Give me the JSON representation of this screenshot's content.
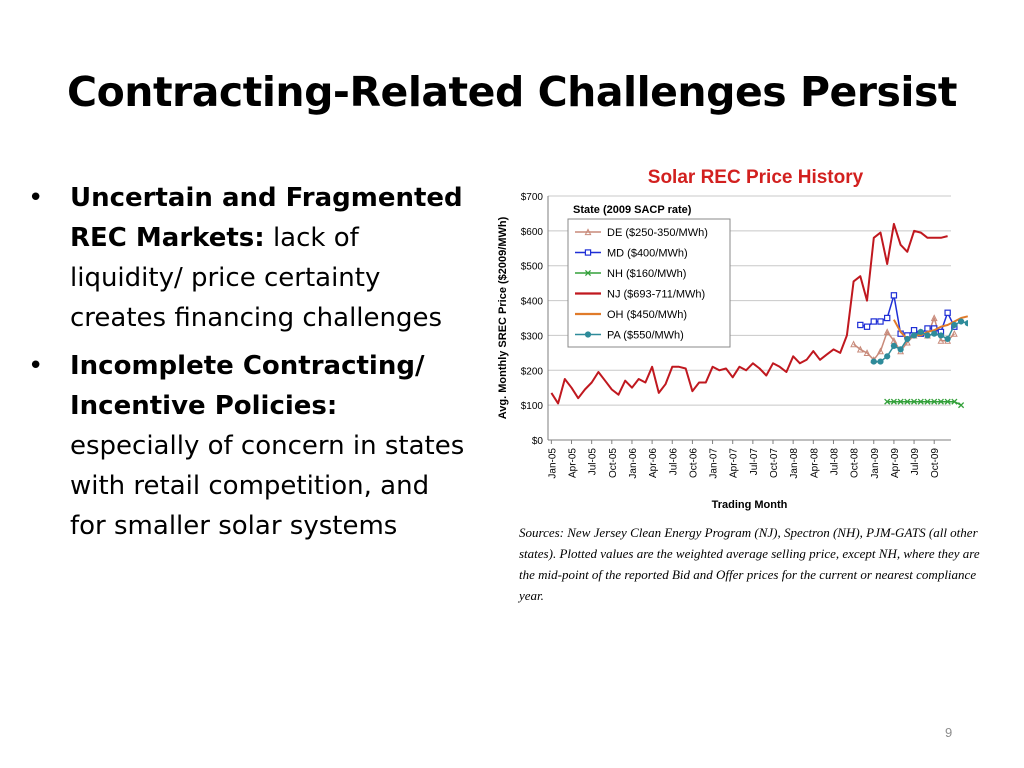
{
  "slide": {
    "title": "Contracting-Related Challenges Persist",
    "bullets": [
      {
        "bold": "Uncertain and Fragmented REC Markets:",
        "text": " lack of liquidity/ price certainty creates financing challenges"
      },
      {
        "bold": "Incomplete Contracting/ Incentive Policies:",
        "text": " especially of concern in states with retail competition, and for smaller solar systems"
      }
    ],
    "sources": "Sources: New Jersey Clean Energy Program (NJ), Spectron (NH), PJM-GATS (all other states). Plotted values are the weighted average selling price, except NH, where they are the mid-point of the reported Bid and Offer prices for the current or nearest compliance year.",
    "page_number": "9"
  },
  "chart_data": {
    "type": "line",
    "title": "Solar REC Price History",
    "xlabel": "Trading Month",
    "ylabel": "Avg. Monthly SREC Price ($2009/MWh)",
    "legend_title": "State (2009 SACP rate)",
    "legend_position": "top-left",
    "grid": true,
    "ylim": [
      0,
      700
    ],
    "yticks": [
      0,
      100,
      200,
      300,
      400,
      500,
      600,
      700
    ],
    "ytick_labels": [
      "$0",
      "$100",
      "$200",
      "$300",
      "$400",
      "$500",
      "$600",
      "$700"
    ],
    "x_start": "2005-01",
    "x_months": 60,
    "xtick_labels": [
      "Jan-05",
      "Apr-05",
      "Jul-05",
      "Oct-05",
      "Jan-06",
      "Apr-06",
      "Jul-06",
      "Oct-06",
      "Jan-07",
      "Apr-07",
      "Jul-07",
      "Oct-07",
      "Jan-08",
      "Apr-08",
      "Jul-08",
      "Oct-08",
      "Jan-09",
      "Apr-09",
      "Jul-09",
      "Oct-09"
    ],
    "series": [
      {
        "name": "NJ ($693-711/MWh)",
        "color": "#c0181f",
        "marker": "none",
        "start": "2005-01",
        "values": [
          135,
          105,
          175,
          150,
          120,
          145,
          165,
          195,
          170,
          145,
          130,
          170,
          150,
          175,
          165,
          210,
          135,
          160,
          210,
          210,
          205,
          140,
          165,
          165,
          210,
          200,
          205,
          180,
          210,
          200,
          220,
          205,
          185,
          220,
          210,
          195,
          240,
          220,
          230,
          255,
          230,
          245,
          260,
          250,
          300,
          455,
          470,
          400,
          580,
          595,
          505,
          620,
          560,
          540,
          600,
          595,
          580,
          580,
          580,
          585
        ]
      },
      {
        "name": "DE ($250-350/MWh)",
        "color": "#c88a7a",
        "marker": "triangle",
        "start": "2008-10",
        "values": [
          275,
          260,
          250,
          230,
          255,
          310,
          285,
          255,
          280,
          300,
          310,
          300,
          350,
          285,
          285,
          305
        ]
      },
      {
        "name": "MD ($400/MWh)",
        "color": "#1f2fd6",
        "marker": "square",
        "start": "2008-11",
        "values": [
          330,
          325,
          340,
          340,
          350,
          415,
          305,
          300,
          315,
          305,
          320,
          320,
          310,
          365,
          325
        ]
      },
      {
        "name": "NH ($160/MWh)",
        "color": "#33a03a",
        "marker": "x",
        "start": "2009-03",
        "values": [
          110,
          110,
          110,
          110,
          110,
          110,
          110,
          110,
          110,
          110,
          110,
          100
        ]
      },
      {
        "name": "OH ($450/MWh)",
        "color": "#e07b2a",
        "marker": "none",
        "start": "2009-04",
        "values": [
          345,
          310,
          290,
          300,
          300,
          310,
          315,
          325,
          330,
          340,
          350,
          355
        ]
      },
      {
        "name": "PA ($550/MWh)",
        "color": "#2e8b9a",
        "marker": "circle",
        "start": "2009-01",
        "values": [
          225,
          225,
          240,
          270,
          260,
          290,
          300,
          310,
          300,
          305,
          300,
          290,
          330,
          340,
          335
        ]
      }
    ]
  }
}
